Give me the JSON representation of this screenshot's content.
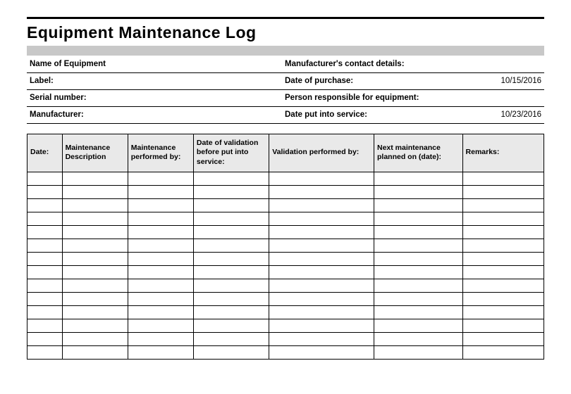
{
  "title": "Equipment Maintenance Log",
  "info": {
    "left": [
      {
        "label": "Name of Equipment",
        "value": ""
      },
      {
        "label": "Label:",
        "value": ""
      },
      {
        "label": "Serial number:",
        "value": ""
      },
      {
        "label": "Manufacturer:",
        "value": ""
      }
    ],
    "right": [
      {
        "label": "Manufacturer's contact details:",
        "value": ""
      },
      {
        "label": "Date of purchase:",
        "value": "10/15/2016"
      },
      {
        "label": "Person responsible for equipment:",
        "value": ""
      },
      {
        "label": "Date put into service:",
        "value": "10/23/2016"
      }
    ]
  },
  "log": {
    "columns": [
      "Date:",
      "Maintenance Description",
      "Maintenance performed by:",
      "Date of validation before put into service:",
      "Validation performed by:",
      "Next maintenance planned on (date):",
      "Remarks:"
    ],
    "row_count": 14
  },
  "styling": {
    "title_bar_color": "#c8c8c8",
    "header_bg_color": "#e9e9e9",
    "border_color": "#000000",
    "background_color": "#ffffff",
    "title_fontsize": 23,
    "info_fontsize": 11.5,
    "header_fontsize": 10.5
  }
}
